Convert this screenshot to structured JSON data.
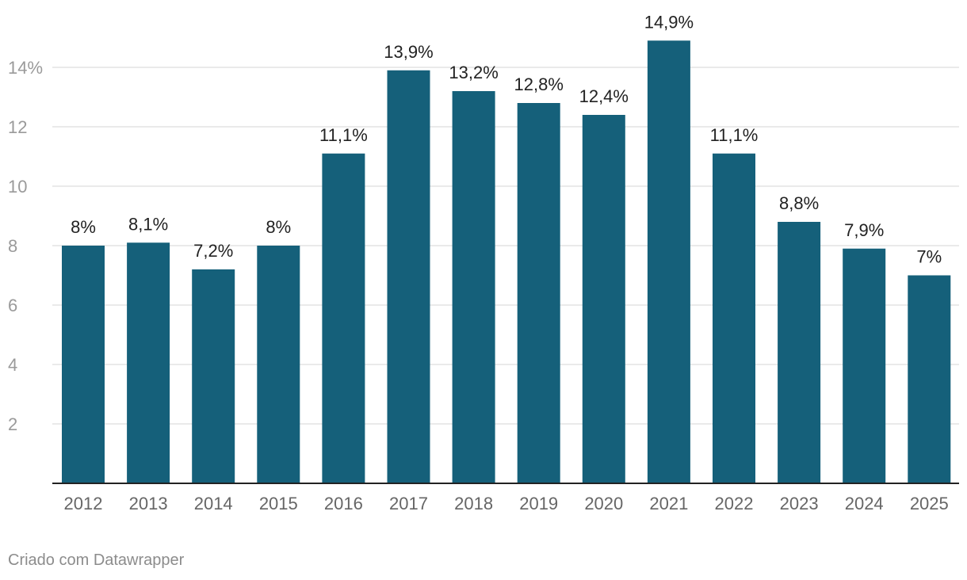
{
  "chart_data": {
    "type": "bar",
    "categories": [
      "2012",
      "2013",
      "2014",
      "2015",
      "2016",
      "2017",
      "2018",
      "2019",
      "2020",
      "2021",
      "2022",
      "2023",
      "2024",
      "2025"
    ],
    "values": [
      8,
      8.1,
      7.2,
      8,
      11.1,
      13.9,
      13.2,
      12.8,
      12.4,
      14.9,
      11.1,
      8.8,
      7.9,
      7
    ],
    "data_labels": [
      "8%",
      "8,1%",
      "7,2%",
      "8%",
      "11,1%",
      "13,9%",
      "13,2%",
      "12,8%",
      "12,4%",
      "14,9%",
      "11,1%",
      "8,8%",
      "7,9%",
      "7%"
    ],
    "y_ticks": [
      2,
      4,
      6,
      8,
      10,
      12,
      14
    ],
    "y_tick_labels": [
      "2",
      "4",
      "6",
      "8",
      "10",
      "12",
      "14%"
    ],
    "ylim": [
      0,
      16
    ],
    "grid": true,
    "bar_color": "#15607a",
    "title": "",
    "xlabel": "",
    "ylabel": ""
  },
  "footer": {
    "credit": "Criado com Datawrapper"
  }
}
